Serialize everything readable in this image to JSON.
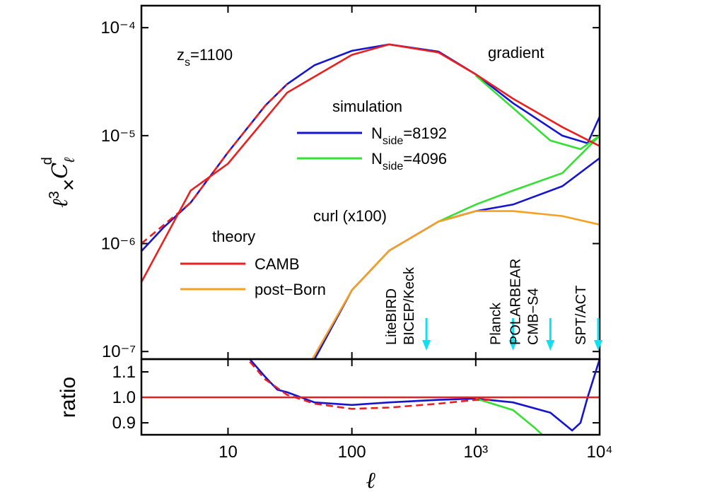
{
  "chart_data": [
    {
      "type": "line",
      "xscale": "log",
      "yscale": "log",
      "xlim": [
        2,
        10000
      ],
      "ylim": [
        8.5e-08,
        0.00016
      ],
      "xticks": [
        10,
        100,
        1000,
        10000
      ],
      "yticks": [
        {
          "value": 0.0001,
          "label": "10⁻⁴"
        },
        {
          "value": 1e-05,
          "label": "10⁻⁵"
        },
        {
          "value": 1e-06,
          "label": "10⁻⁶"
        },
        {
          "value": 1e-07,
          "label": "10⁻⁷"
        }
      ],
      "ylabel": [
        "ℓ",
        "3",
        "×",
        "C",
        "ℓ",
        "d"
      ],
      "annotations": [
        [
          "z",
          "s",
          "=1100"
        ],
        [
          "gradient"
        ],
        [
          "curl (x100)"
        ]
      ],
      "legend_titles": [
        "simulation",
        "theory"
      ],
      "series": [
        {
          "name": [
            "N",
            "side",
            "=8192"
          ],
          "color": "#1515d0",
          "x": [
            2,
            3,
            5,
            10,
            20,
            30,
            50,
            100,
            200,
            500,
            1000,
            2000,
            5000,
            8000,
            10000
          ],
          "values": [
            8.5e-07,
            1.4e-06,
            2.4e-06,
            7e-06,
            1.9e-05,
            3e-05,
            4.5e-05,
            6.1e-05,
            7e-05,
            6e-05,
            3.7e-05,
            2e-05,
            1e-05,
            8.5e-06,
            1.5e-05
          ]
        },
        {
          "name": [
            "N",
            "side",
            "=4096"
          ],
          "color": "#35e035",
          "x": [
            1000,
            2000,
            4000,
            7000,
            10000
          ],
          "values": [
            3.6e-05,
            1.8e-05,
            9e-06,
            7.5e-06,
            1e-05
          ]
        },
        {
          "color": "#1515d0",
          "x": [
            50,
            100,
            200,
            500,
            1000,
            2000,
            5000,
            10000
          ],
          "values": [
            8.5e-08,
            3.7e-07,
            8.6e-07,
            1.6e-06,
            2e-06,
            2.3e-06,
            3.4e-06,
            6.2e-06
          ]
        },
        {
          "color": "#35e035",
          "x": [
            500,
            1000,
            2000,
            5000,
            10000
          ],
          "values": [
            1.6e-06,
            2.3e-06,
            3.1e-06,
            4.5e-06,
            1e-05
          ]
        },
        {
          "name": [
            "CAMB"
          ],
          "color": "#e82020",
          "x": [
            2,
            5,
            10,
            30,
            100,
            200,
            500,
            1000,
            2000,
            5000,
            10000
          ],
          "values": [
            4.4e-07,
            3.1e-06,
            5.5e-06,
            2.5e-05,
            5.6e-05,
            7e-05,
            5.9e-05,
            3.7e-05,
            2.2e-05,
            1.2e-05,
            8e-06
          ]
        },
        {
          "name": [
            "post−Born"
          ],
          "color": "#f5a020",
          "x": [
            48,
            100,
            200,
            500,
            1000,
            2000,
            5000,
            10000
          ],
          "values": [
            8.5e-08,
            3.7e-07,
            8.6e-07,
            1.6e-06,
            2e-06,
            2e-06,
            1.8e-06,
            1.5e-06
          ]
        },
        {
          "color": "#e82020",
          "dash": true,
          "x": [
            2,
            5,
            10,
            20,
            30
          ],
          "values": [
            1e-06,
            2.4e-06,
            7e-06,
            1.9e-05,
            3e-05
          ]
        }
      ],
      "markers": [
        {
          "labels": [
            "LiteBIRD",
            "BICEP/Keck"
          ],
          "x": 400
        },
        {
          "labels": [
            "Planck"
          ],
          "x": 2000
        },
        {
          "labels": [
            "POLARBEAR",
            "CMB−S4"
          ],
          "x": 4000
        },
        {
          "labels": [
            "SPT/ACT"
          ],
          "x": 10000
        }
      ],
      "marker_color": "#10e0f0"
    },
    {
      "type": "line",
      "xscale": "log",
      "xlim": [
        2,
        10000
      ],
      "ylim": [
        0.853,
        1.15
      ],
      "xticks": [
        {
          "value": 10,
          "label": "10"
        },
        {
          "value": 100,
          "label": "100"
        },
        {
          "value": 1000,
          "label": "10³"
        },
        {
          "value": 10000,
          "label": "10⁴"
        }
      ],
      "yticks": [
        0.9,
        {
          "value": 1,
          "label": "1.0"
        },
        1.1
      ],
      "xlabel": "ℓ",
      "ylabel": "ratio",
      "series": [
        {
          "color": "#1515d0",
          "x": [
            15,
            20,
            25,
            30,
            50,
            100,
            200,
            500,
            1000,
            2000,
            4000,
            6000,
            7000,
            8000,
            10000
          ],
          "values": [
            1.15,
            1.08,
            1.03,
            1.02,
            0.98,
            0.97,
            0.98,
            0.99,
            0.995,
            0.98,
            0.94,
            0.87,
            0.9,
            1.0,
            1.15
          ]
        },
        {
          "color": "#35e035",
          "x": [
            1000,
            2000,
            3000,
            3500
          ],
          "values": [
            0.995,
            0.95,
            0.88,
            0.85
          ]
        },
        {
          "color": "#e82020",
          "x": [
            2,
            10000
          ],
          "values": [
            1,
            1
          ]
        },
        {
          "color": "#e82020",
          "dash": true,
          "x": [
            15,
            20,
            30,
            50,
            100,
            200,
            500,
            1000,
            1300
          ],
          "values": [
            1.14,
            1.07,
            1.01,
            0.975,
            0.955,
            0.96,
            0.975,
            0.99,
            0.99
          ]
        }
      ]
    }
  ]
}
